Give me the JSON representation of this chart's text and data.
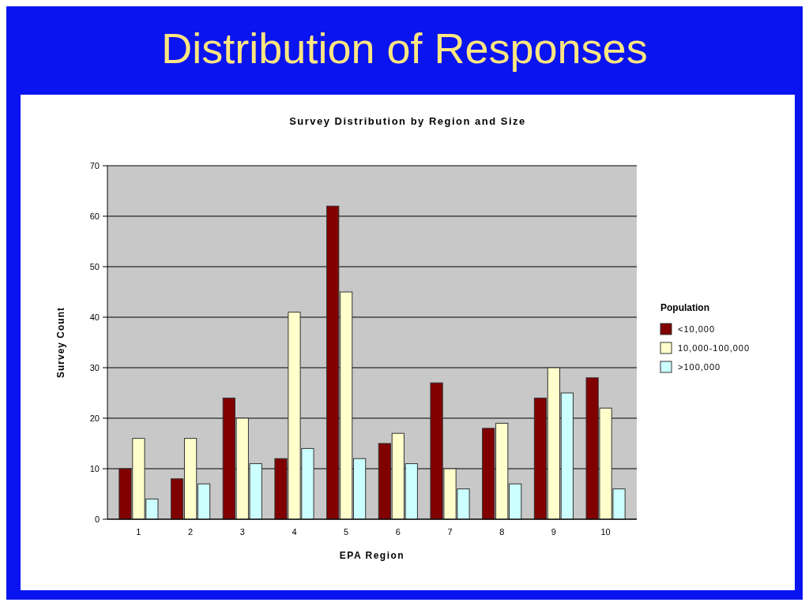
{
  "chart_data": {
    "type": "bar",
    "title": "Distribution of Responses",
    "subtitle": "Survey Distribution by Region and Size",
    "xlabel": "EPA Region",
    "ylabel": "Survey Count",
    "legend_title": "Population",
    "categories": [
      "1",
      "2",
      "3",
      "4",
      "5",
      "6",
      "7",
      "8",
      "9",
      "10"
    ],
    "series": [
      {
        "name": "<10,000",
        "color": "#800000",
        "values": [
          10,
          8,
          24,
          12,
          62,
          15,
          27,
          18,
          24,
          28
        ]
      },
      {
        "name": "10,000-100,000",
        "color": "#ffffcc",
        "values": [
          16,
          16,
          20,
          41,
          45,
          17,
          10,
          19,
          30,
          22
        ]
      },
      {
        "name": ">100,000",
        "color": "#ccffff",
        "values": [
          4,
          7,
          11,
          14,
          12,
          11,
          6,
          7,
          25,
          6
        ]
      }
    ],
    "ylim": [
      0,
      70
    ],
    "yticks": [
      0,
      10,
      20,
      30,
      40,
      50,
      60,
      70
    ],
    "grid": "y",
    "legend": "right"
  }
}
